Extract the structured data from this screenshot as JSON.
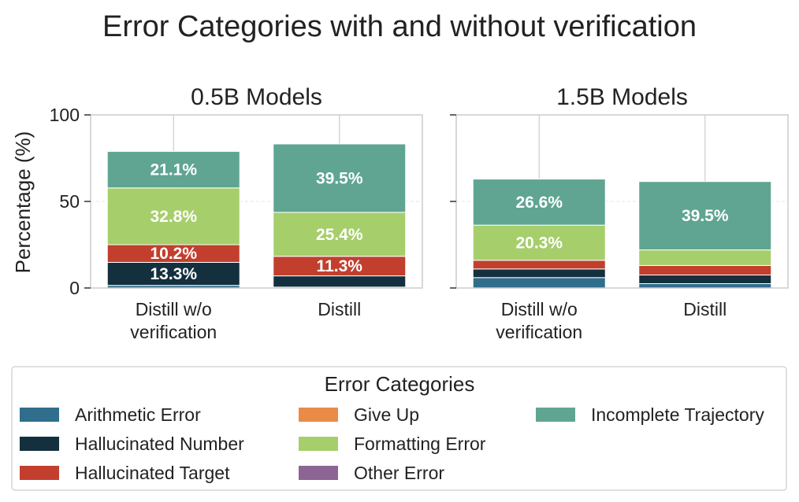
{
  "chart_data": {
    "type": "bar",
    "stacked": true,
    "title": "Error Categories with and without verification",
    "ylabel": "Percentage (%)",
    "ylim": [
      0,
      100
    ],
    "yticks": [
      0,
      50,
      100
    ],
    "grid": true,
    "legend": {
      "title": "Error Categories",
      "placement": "bottom",
      "entries": [
        {
          "name": "Arithmetic Error",
          "color": "#306e8c"
        },
        {
          "name": "Hallucinated Number",
          "color": "#14303e"
        },
        {
          "name": "Hallucinated Target",
          "color": "#c23f2e"
        },
        {
          "name": "Give Up",
          "color": "#ea8a47"
        },
        {
          "name": "Formatting Error",
          "color": "#a6ce6b"
        },
        {
          "name": "Other Error",
          "color": "#8c6594"
        },
        {
          "name": "Incomplete Trajectory",
          "color": "#5fa592"
        }
      ]
    },
    "panels": [
      {
        "title": "0.5B Models",
        "categories": [
          [
            "Distill w/o",
            "verification"
          ],
          [
            "Distill"
          ]
        ],
        "series": [
          {
            "name": "Arithmetic Error",
            "values": [
              1.5,
              0.5
            ],
            "labels": [
              "",
              ""
            ]
          },
          {
            "name": "Hallucinated Number",
            "values": [
              13.3,
              6.5
            ],
            "labels": [
              "13.3%",
              ""
            ]
          },
          {
            "name": "Hallucinated Target",
            "values": [
              10.2,
              11.3
            ],
            "labels": [
              "10.2%",
              "11.3%"
            ]
          },
          {
            "name": "Give Up",
            "values": [
              0,
              0
            ],
            "labels": [
              "",
              ""
            ]
          },
          {
            "name": "Formatting Error",
            "values": [
              32.8,
              25.4
            ],
            "labels": [
              "32.8%",
              "25.4%"
            ]
          },
          {
            "name": "Other Error",
            "values": [
              0,
              0
            ],
            "labels": [
              "",
              ""
            ]
          },
          {
            "name": "Incomplete Trajectory",
            "values": [
              21.1,
              39.5
            ],
            "labels": [
              "21.1%",
              "39.5%"
            ]
          }
        ]
      },
      {
        "title": "1.5B Models",
        "categories": [
          [
            "Distill w/o",
            "verification"
          ],
          [
            "Distill"
          ]
        ],
        "series": [
          {
            "name": "Arithmetic Error",
            "values": [
              6.0,
              2.5
            ],
            "labels": [
              "",
              ""
            ]
          },
          {
            "name": "Hallucinated Number",
            "values": [
              5.0,
              5.0
            ],
            "labels": [
              "",
              ""
            ]
          },
          {
            "name": "Hallucinated Target",
            "values": [
              5.0,
              5.5
            ],
            "labels": [
              "",
              ""
            ]
          },
          {
            "name": "Give Up",
            "values": [
              0,
              0
            ],
            "labels": [
              "",
              ""
            ]
          },
          {
            "name": "Formatting Error",
            "values": [
              20.3,
              9.0
            ],
            "labels": [
              "20.3%",
              ""
            ]
          },
          {
            "name": "Other Error",
            "values": [
              0,
              0
            ],
            "labels": [
              "",
              ""
            ]
          },
          {
            "name": "Incomplete Trajectory",
            "values": [
              26.6,
              39.5
            ],
            "labels": [
              "26.6%",
              "39.5%"
            ]
          }
        ]
      }
    ]
  }
}
